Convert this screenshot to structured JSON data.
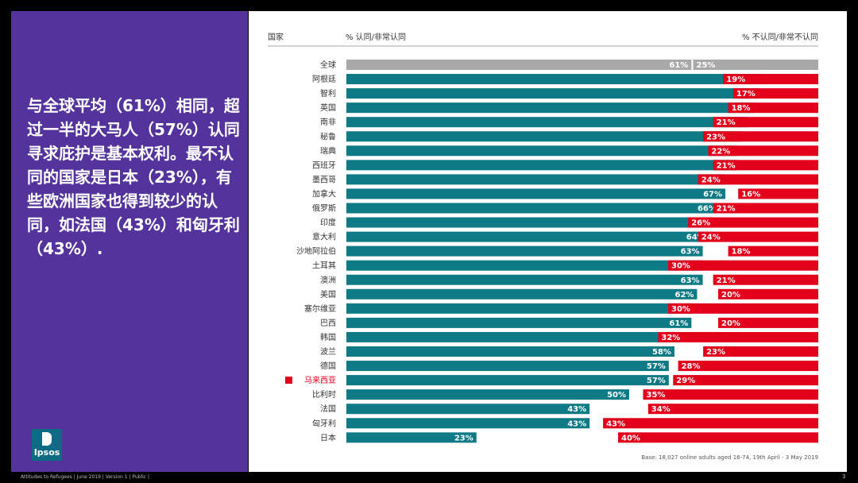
{
  "summary": "与全球平均（61%）相同，超过一半的大马人（57%）认同寻求庇护是基本权利。最不认同的国家是日本（23%），有些欧洲国家也得到较少的认同，如法国（43%）和匈牙利（43%）.",
  "logo_text": "Ipsos",
  "footer": "Attitudes to Refugees | June 2019 | Version 1 | Public |",
  "page_number": "3",
  "chart_data": {
    "type": "bar",
    "headers": {
      "country": "国家",
      "agree": "% 认同/非常认同",
      "disagree": "% 不认同/非常不认同"
    },
    "categories": [
      "全球",
      "阿根廷",
      "智利",
      "英国",
      "南非",
      "秘鲁",
      "瑞典",
      "西班牙",
      "墨西哥",
      "加拿大",
      "俄罗斯",
      "印度",
      "意大利",
      "沙地阿拉伯",
      "土耳其",
      "澳洲",
      "美国",
      "塞尔维亚",
      "巴西",
      "韩国",
      "波兰",
      "德国",
      "马来西亚",
      "比利时",
      "法国",
      "匈牙利",
      "日本"
    ],
    "series": [
      {
        "name": "% 认同/非常认同",
        "values": [
          61,
          74,
          73,
          72,
          71,
          70,
          69,
          69,
          67,
          67,
          66,
          65,
          64,
          63,
          63,
          63,
          62,
          61,
          61,
          59,
          58,
          57,
          57,
          50,
          43,
          43,
          23
        ]
      },
      {
        "name": "% 不认同/非常不认同",
        "values": [
          25,
          19,
          17,
          18,
          21,
          23,
          22,
          21,
          24,
          16,
          21,
          26,
          24,
          18,
          30,
          21,
          20,
          30,
          20,
          32,
          23,
          28,
          29,
          35,
          34,
          43,
          40
        ]
      }
    ],
    "highlight": "马来西亚",
    "base_note": "Base: 18,027 online adults aged 16-74, 19th April - 3 May 2019",
    "colors": {
      "agree": "#0e7a86",
      "disagree": "#e3001b",
      "global": "#a9a9a9",
      "highlight": "#e3001b"
    }
  }
}
